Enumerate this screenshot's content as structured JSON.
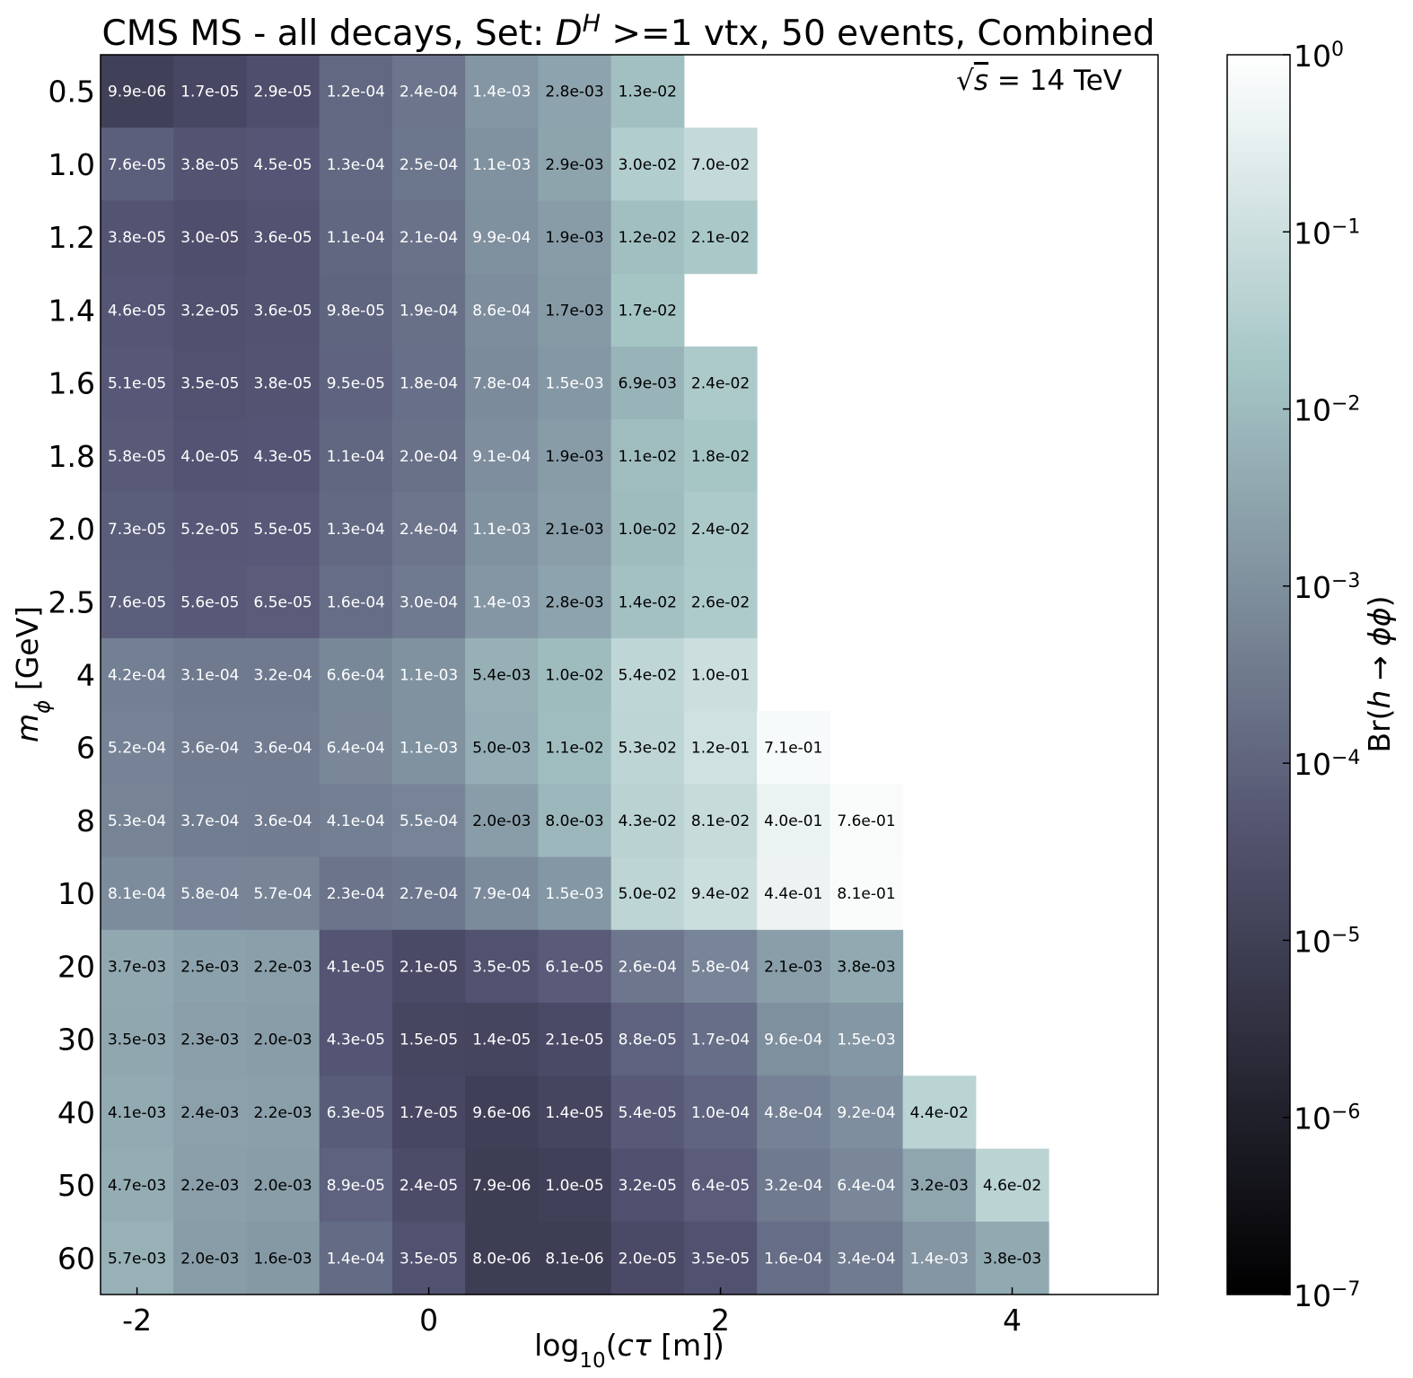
{
  "chart_data": {
    "type": "heatmap",
    "title": "CMS MS - all decays, Set: D^H >=1 vtx, 50 events, Combined",
    "title_parts": {
      "prefix": "CMS MS - all decays, Set: ",
      "symbol": "D",
      "superscript": "H",
      "suffix": " >=1 vtx, 50 events, Combined"
    },
    "annotation": "√s = 14 TeV",
    "annotation_parts": {
      "sqrt": "√",
      "s": "s",
      "rest": " = 14 TeV"
    },
    "xlabel": "log10(cτ [m])",
    "xlabel_parts": {
      "pre": "log",
      "sub": "10",
      "open": "(",
      "c": "c",
      "tau": "τ",
      "unit": " [m])"
    },
    "ylabel": "m_ϕ [GeV]",
    "ylabel_parts": {
      "m": "m",
      "sub": "ϕ",
      "unit": " [GeV]"
    },
    "colorbar_label": "Br(h → ϕϕ)",
    "colorbar_label_parts": {
      "pre": "Br(",
      "h": "h",
      "arrow": " → ",
      "phi": "ϕϕ",
      "close": ")"
    },
    "colorbar_scale": "log",
    "colorbar_range": [
      1e-07,
      1
    ],
    "colormap": "bone",
    "colorbar_ticks": [
      {
        "base": "10",
        "exp": "0"
      },
      {
        "base": "10",
        "exp": "−1"
      },
      {
        "base": "10",
        "exp": "−2"
      },
      {
        "base": "10",
        "exp": "−3"
      },
      {
        "base": "10",
        "exp": "−4"
      },
      {
        "base": "10",
        "exp": "−5"
      },
      {
        "base": "10",
        "exp": "−6"
      },
      {
        "base": "10",
        "exp": "−7"
      }
    ],
    "xlim": [
      -2.25,
      5.0
    ],
    "x_ticks": [
      -2,
      0,
      2,
      4
    ],
    "x_tick_labels": [
      "-2",
      "0",
      "2",
      "4"
    ],
    "x_bin_centers": [
      -2.0,
      -1.5,
      -1.0,
      -0.5,
      0.0,
      0.5,
      1.0,
      1.5,
      2.0,
      2.5,
      3.0,
      3.5,
      4.0
    ],
    "y_categories": [
      "0.5",
      "1.0",
      "1.2",
      "1.4",
      "1.6",
      "1.8",
      "2.0",
      "2.5",
      "4",
      "6",
      "8",
      "10",
      "20",
      "30",
      "40",
      "50",
      "60"
    ],
    "rows": [
      [
        "9.9e-06",
        "1.7e-05",
        "2.9e-05",
        "1.2e-04",
        "2.4e-04",
        "1.4e-03",
        "2.8e-03",
        "1.3e-02"
      ],
      [
        "7.6e-05",
        "3.8e-05",
        "4.5e-05",
        "1.3e-04",
        "2.5e-04",
        "1.1e-03",
        "2.9e-03",
        "3.0e-02",
        "7.0e-02"
      ],
      [
        "3.8e-05",
        "3.0e-05",
        "3.6e-05",
        "1.1e-04",
        "2.1e-04",
        "9.9e-04",
        "1.9e-03",
        "1.2e-02",
        "2.1e-02"
      ],
      [
        "4.6e-05",
        "3.2e-05",
        "3.6e-05",
        "9.8e-05",
        "1.9e-04",
        "8.6e-04",
        "1.7e-03",
        "1.7e-02"
      ],
      [
        "5.1e-05",
        "3.5e-05",
        "3.8e-05",
        "9.5e-05",
        "1.8e-04",
        "7.8e-04",
        "1.5e-03",
        "6.9e-03",
        "2.4e-02"
      ],
      [
        "5.8e-05",
        "4.0e-05",
        "4.3e-05",
        "1.1e-04",
        "2.0e-04",
        "9.1e-04",
        "1.9e-03",
        "1.1e-02",
        "1.8e-02"
      ],
      [
        "7.3e-05",
        "5.2e-05",
        "5.5e-05",
        "1.3e-04",
        "2.4e-04",
        "1.1e-03",
        "2.1e-03",
        "1.0e-02",
        "2.4e-02"
      ],
      [
        "7.6e-05",
        "5.6e-05",
        "6.5e-05",
        "1.6e-04",
        "3.0e-04",
        "1.4e-03",
        "2.8e-03",
        "1.4e-02",
        "2.6e-02"
      ],
      [
        "4.2e-04",
        "3.1e-04",
        "3.2e-04",
        "6.6e-04",
        "1.1e-03",
        "5.4e-03",
        "1.0e-02",
        "5.4e-02",
        "1.0e-01"
      ],
      [
        "5.2e-04",
        "3.6e-04",
        "3.6e-04",
        "6.4e-04",
        "1.1e-03",
        "5.0e-03",
        "1.1e-02",
        "5.3e-02",
        "1.2e-01",
        "7.1e-01"
      ],
      [
        "5.3e-04",
        "3.7e-04",
        "3.6e-04",
        "4.1e-04",
        "5.5e-04",
        "2.0e-03",
        "8.0e-03",
        "4.3e-02",
        "8.1e-02",
        "4.0e-01",
        "7.6e-01"
      ],
      [
        "8.1e-04",
        "5.8e-04",
        "5.7e-04",
        "2.3e-04",
        "2.7e-04",
        "7.9e-04",
        "1.5e-03",
        "5.0e-02",
        "9.4e-02",
        "4.4e-01",
        "8.1e-01"
      ],
      [
        "3.7e-03",
        "2.5e-03",
        "2.2e-03",
        "4.1e-05",
        "2.1e-05",
        "3.5e-05",
        "6.1e-05",
        "2.6e-04",
        "5.8e-04",
        "2.1e-03",
        "3.8e-03"
      ],
      [
        "3.5e-03",
        "2.3e-03",
        "2.0e-03",
        "4.3e-05",
        "1.5e-05",
        "1.4e-05",
        "2.1e-05",
        "8.8e-05",
        "1.7e-04",
        "9.6e-04",
        "1.5e-03"
      ],
      [
        "4.1e-03",
        "2.4e-03",
        "2.2e-03",
        "6.3e-05",
        "1.7e-05",
        "9.6e-06",
        "1.4e-05",
        "5.4e-05",
        "1.0e-04",
        "4.8e-04",
        "9.2e-04",
        "4.4e-02"
      ],
      [
        "4.7e-03",
        "2.2e-03",
        "2.0e-03",
        "8.9e-05",
        "2.4e-05",
        "7.9e-06",
        "1.0e-05",
        "3.2e-05",
        "6.4e-05",
        "3.2e-04",
        "6.4e-04",
        "3.2e-03",
        "4.6e-02"
      ],
      [
        "5.7e-03",
        "2.0e-03",
        "1.6e-03",
        "1.4e-04",
        "3.5e-05",
        "8.0e-06",
        "8.1e-06",
        "2.0e-05",
        "3.5e-05",
        "1.6e-04",
        "3.4e-04",
        "1.4e-03",
        "3.8e-03"
      ]
    ]
  }
}
